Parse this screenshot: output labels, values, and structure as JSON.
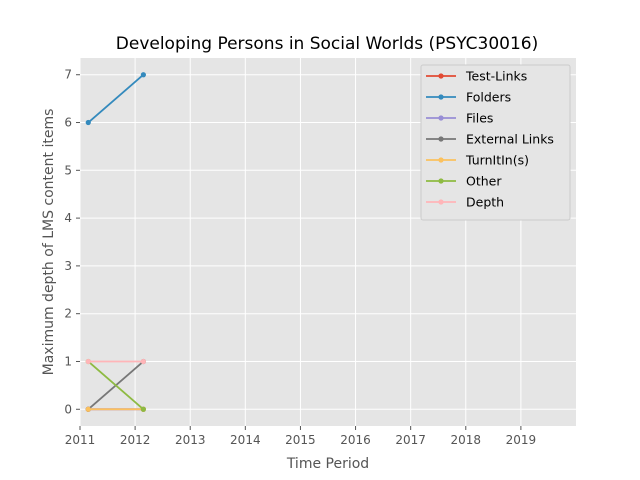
{
  "chart_data": {
    "type": "line",
    "title": "Developing Persons in Social Worlds (PSYC30016)",
    "xlabel": "Time Period",
    "ylabel": "Maximum depth of LMS content items",
    "xlim": [
      2011,
      2020
    ],
    "ylim": [
      -0.35,
      7.35
    ],
    "xticks": [
      2011,
      2012,
      2013,
      2014,
      2015,
      2016,
      2017,
      2018,
      2019
    ],
    "yticks": [
      0,
      1,
      2,
      3,
      4,
      5,
      6,
      7
    ],
    "grid": true,
    "legend_position": "top-right",
    "x": [
      2011.15,
      2012.15
    ],
    "series": [
      {
        "name": "Test-Links",
        "color": "#E24A33",
        "values": [
          0,
          0
        ]
      },
      {
        "name": "Folders",
        "color": "#348ABD",
        "values": [
          6,
          7
        ]
      },
      {
        "name": "Files",
        "color": "#988ED5",
        "values": [
          0,
          0
        ]
      },
      {
        "name": "External Links",
        "color": "#777777",
        "values": [
          0,
          1
        ]
      },
      {
        "name": "TurnItIn(s)",
        "color": "#FBC15E",
        "values": [
          0,
          0
        ]
      },
      {
        "name": "Other",
        "color": "#8EBA42",
        "values": [
          1,
          0
        ]
      },
      {
        "name": "Depth",
        "color": "#FFB5B8",
        "values": [
          1,
          1
        ]
      }
    ]
  }
}
